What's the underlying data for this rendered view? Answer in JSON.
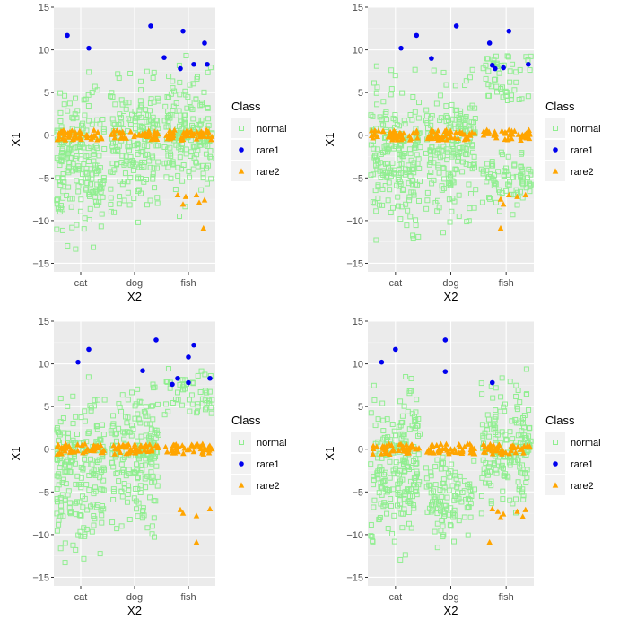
{
  "chart_data": [
    {
      "type": "scatter",
      "title": "",
      "xlabel": "X2",
      "ylabel": "X1",
      "categories": [
        "cat",
        "dog",
        "fish"
      ],
      "ylim": [
        -16,
        15
      ],
      "yticks": [
        -15,
        -10,
        -5,
        0,
        5,
        10,
        15
      ],
      "legend": {
        "title": "Class",
        "position": "right",
        "entries": [
          "normal",
          "rare1",
          "rare2"
        ]
      },
      "normal_bands": {
        "cat": [
          [
            -13.5,
            8
          ]
        ],
        "dog": [
          [
            -11.5,
            9
          ]
        ],
        "fish": [
          [
            -9.5,
            9.5
          ]
        ]
      },
      "series": [
        {
          "name": "rare1",
          "points": [
            [
              "cat",
              -0.25,
              11.7
            ],
            [
              "cat",
              0.15,
              10.2
            ],
            [
              "dog",
              0.3,
              12.8
            ],
            [
              "dog",
              0.55,
              9.1
            ],
            [
              "fish",
              -0.1,
              12.2
            ],
            [
              "fish",
              0.3,
              10.8
            ],
            [
              "fish",
              -0.15,
              7.8
            ],
            [
              "fish",
              0.1,
              8.3
            ],
            [
              "fish",
              0.35,
              8.3
            ]
          ]
        },
        {
          "name": "rare2",
          "points": [
            [
              "fish",
              -0.2,
              -7.0
            ],
            [
              "fish",
              -0.05,
              -7.2
            ],
            [
              "fish",
              0.15,
              -7.0
            ],
            [
              "fish",
              -0.1,
              -8.1
            ],
            [
              "fish",
              0.2,
              -7.9
            ],
            [
              "fish",
              0.3,
              -7.6
            ],
            [
              "fish",
              0.28,
              -10.9
            ]
          ]
        }
      ]
    },
    {
      "type": "scatter",
      "title": "",
      "xlabel": "X2",
      "ylabel": "X1",
      "categories": [
        "cat",
        "dog",
        "fish"
      ],
      "ylim": [
        -16,
        15
      ],
      "yticks": [
        -15,
        -10,
        -5,
        0,
        5,
        10,
        15
      ],
      "legend": {
        "title": "Class",
        "position": "right",
        "entries": [
          "normal",
          "rare1",
          "rare2"
        ]
      },
      "normal_bands": {
        "cat": [
          [
            -13.5,
            9
          ]
        ],
        "dog": [
          [
            -11.5,
            9
          ]
        ],
        "fish": [
          [
            -9.5,
            -1
          ],
          [
            4,
            9.5
          ]
        ]
      },
      "series": [
        {
          "name": "rare1",
          "points": [
            [
              "cat",
              0.1,
              10.2
            ],
            [
              "cat",
              0.38,
              11.7
            ],
            [
              "dog",
              -0.35,
              9.0
            ],
            [
              "dog",
              0.1,
              12.8
            ],
            [
              "fish",
              -0.3,
              10.8
            ],
            [
              "fish",
              0.05,
              12.2
            ],
            [
              "fish",
              -0.25,
              8.2
            ],
            [
              "fish",
              -0.2,
              7.8
            ],
            [
              "fish",
              -0.05,
              7.9
            ],
            [
              "fish",
              0.4,
              8.3
            ]
          ]
        },
        {
          "name": "rare2",
          "points": [
            [
              "fish",
              -0.1,
              -7.5
            ],
            [
              "fish",
              0.05,
              -7.0
            ],
            [
              "fish",
              0.2,
              -7.2
            ],
            [
              "fish",
              -0.05,
              -8.1
            ],
            [
              "fish",
              0.35,
              -7.0
            ],
            [
              "fish",
              -0.1,
              -10.9
            ]
          ]
        }
      ]
    },
    {
      "type": "scatter",
      "title": "",
      "xlabel": "X2",
      "ylabel": "X1",
      "categories": [
        "cat",
        "dog",
        "fish"
      ],
      "ylim": [
        -16,
        15
      ],
      "yticks": [
        -15,
        -10,
        -5,
        0,
        5,
        10,
        15
      ],
      "legend": {
        "title": "Class",
        "position": "right",
        "entries": [
          "normal",
          "rare1",
          "rare2"
        ]
      },
      "normal_bands": {
        "cat": [
          [
            -13.5,
            9
          ]
        ],
        "dog": [
          [
            -11.5,
            9.5
          ]
        ],
        "fish": [
          [
            4,
            9.5
          ]
        ]
      },
      "series": [
        {
          "name": "rare1",
          "points": [
            [
              "cat",
              -0.05,
              10.2
            ],
            [
              "cat",
              0.15,
              11.7
            ],
            [
              "dog",
              0.15,
              9.2
            ],
            [
              "dog",
              0.4,
              12.8
            ],
            [
              "fish",
              -0.3,
              7.6
            ],
            [
              "fish",
              -0.2,
              8.3
            ],
            [
              "fish",
              0.0,
              10.8
            ],
            [
              "fish",
              0.1,
              12.2
            ],
            [
              "fish",
              0.0,
              7.8
            ],
            [
              "fish",
              0.4,
              8.3
            ]
          ]
        },
        {
          "name": "rare2",
          "points": [
            [
              "fish",
              -0.15,
              -7.1
            ],
            [
              "fish",
              -0.1,
              -7.5
            ],
            [
              "fish",
              0.15,
              -7.8
            ],
            [
              "fish",
              0.4,
              -7.0
            ],
            [
              "fish",
              0.15,
              -10.9
            ]
          ]
        }
      ]
    },
    {
      "type": "scatter",
      "title": "",
      "xlabel": "X2",
      "ylabel": "X1",
      "categories": [
        "cat",
        "dog",
        "fish"
      ],
      "ylim": [
        -16,
        15
      ],
      "yticks": [
        -15,
        -10,
        -5,
        0,
        5,
        10,
        15
      ],
      "legend": {
        "title": "Class",
        "position": "right",
        "entries": [
          "normal",
          "rare1",
          "rare2"
        ]
      },
      "normal_bands": {
        "cat": [
          [
            -13.5,
            9
          ]
        ],
        "dog": [
          [
            -11.5,
            0.5
          ]
        ],
        "fish": [
          [
            -9.5,
            10
          ]
        ]
      },
      "series": [
        {
          "name": "rare1",
          "points": [
            [
              "cat",
              -0.25,
              10.2
            ],
            [
              "cat",
              0.0,
              11.7
            ],
            [
              "dog",
              -0.1,
              12.8
            ],
            [
              "dog",
              -0.1,
              9.1
            ],
            [
              "fish",
              -0.25,
              7.8
            ]
          ]
        },
        {
          "name": "rare2",
          "points": [
            [
              "fish",
              -0.25,
              -7.0
            ],
            [
              "fish",
              -0.15,
              -7.3
            ],
            [
              "fish",
              -0.05,
              -7.6
            ],
            [
              "fish",
              0.2,
              -7.3
            ],
            [
              "fish",
              0.35,
              -7.1
            ],
            [
              "fish",
              -0.1,
              -8.0
            ],
            [
              "fish",
              0.3,
              -7.9
            ],
            [
              "fish",
              -0.3,
              -10.9
            ]
          ]
        }
      ]
    }
  ],
  "colors": {
    "normal": "#90ee90",
    "rare1": "#0000ee",
    "rare2": "#ffa500",
    "panel": "#ebebeb",
    "grid_major": "#ffffff",
    "tick": "#4d4d4d"
  }
}
